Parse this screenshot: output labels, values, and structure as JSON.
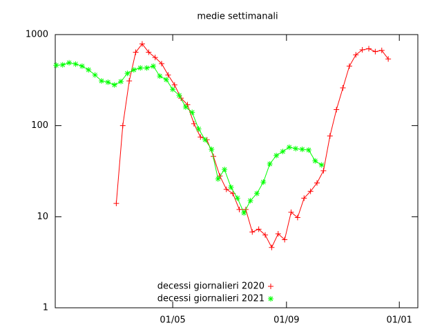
{
  "chart_data": {
    "type": "line",
    "title": "medie settimanali",
    "log_y": true,
    "xlim": [
      -6,
      386
    ],
    "xticks": [
      {
        "value": 121,
        "label": "01/05"
      },
      {
        "value": 244,
        "label": "01/09"
      },
      {
        "value": 366,
        "label": "01/01"
      }
    ],
    "ylim": [
      1,
      1000
    ],
    "yticks": [
      1,
      10,
      100,
      1000
    ],
    "legend": "bottom",
    "series": [
      {
        "name": "decessi giornalieri 2020",
        "color": "#ff0000",
        "marker": "plus",
        "x": [
          60,
          67,
          74,
          81,
          88,
          95,
          102,
          109,
          116,
          123,
          130,
          137,
          144,
          151,
          158,
          165,
          172,
          179,
          186,
          193,
          200,
          207,
          214,
          221,
          228,
          235,
          242,
          249,
          256,
          263,
          270,
          277,
          284,
          291,
          298,
          305,
          312,
          319,
          326,
          333,
          340,
          347,
          354
        ],
        "values": [
          14,
          100,
          310,
          640,
          790,
          640,
          560,
          480,
          360,
          280,
          200,
          170,
          105,
          75,
          70,
          46,
          28,
          20,
          18,
          12,
          12,
          6.8,
          7.3,
          6.3,
          4.6,
          6.5,
          5.6,
          11.2,
          9.8,
          16,
          19,
          23.5,
          32,
          77,
          150,
          260,
          450,
          600,
          680,
          700,
          650,
          670,
          540
        ]
      },
      {
        "name": "decessi giornalieri 2021",
        "color": "#00ff00",
        "marker": "star",
        "x": [
          -5,
          2,
          9,
          16,
          23,
          30,
          37,
          44,
          51,
          58,
          65,
          72,
          79,
          86,
          93,
          100,
          107,
          114,
          121,
          128,
          135,
          142,
          149,
          156,
          163,
          170,
          177,
          184,
          191,
          198,
          205,
          212,
          219,
          226,
          233,
          240,
          247,
          254,
          261,
          268,
          275,
          282
        ],
        "values": [
          460,
          465,
          490,
          475,
          450,
          410,
          360,
          310,
          300,
          280,
          305,
          375,
          410,
          430,
          430,
          450,
          350,
          320,
          250,
          215,
          160,
          140,
          92,
          70,
          55,
          26,
          33,
          21,
          16,
          11,
          15,
          18,
          24,
          38,
          47,
          52,
          58,
          56,
          55,
          54,
          41,
          37
        ]
      }
    ]
  }
}
